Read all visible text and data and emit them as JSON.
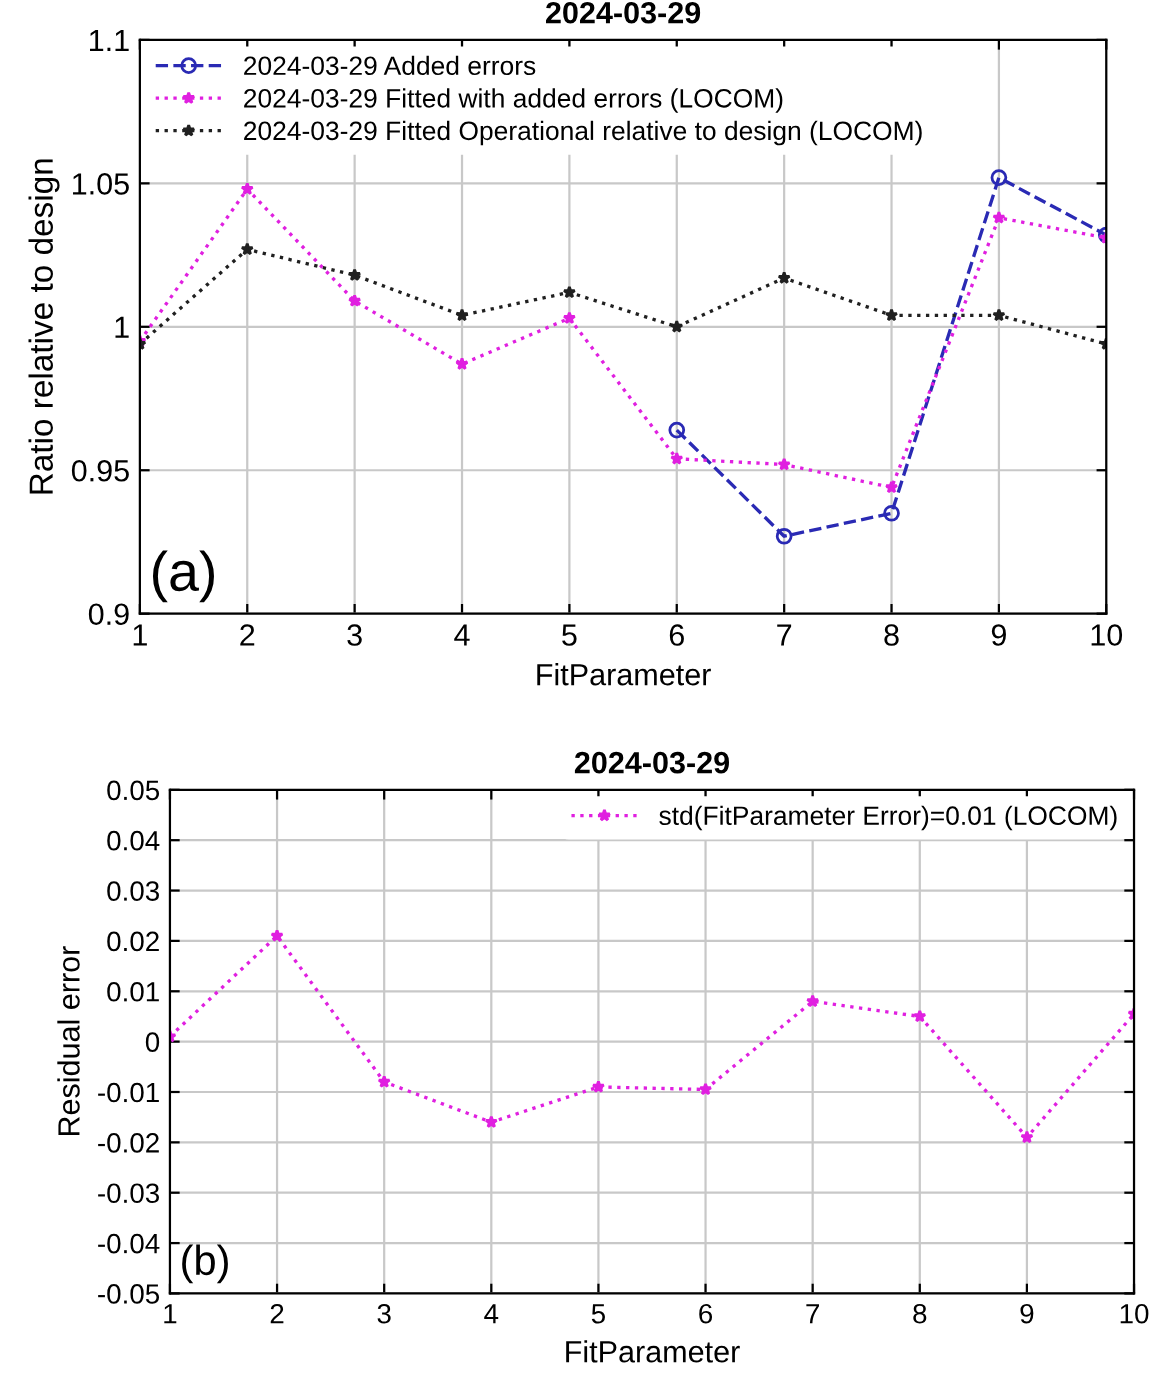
{
  "chart_data": [
    {
      "type": "line",
      "title": "2024-03-29",
      "xlabel": "FitParameter",
      "ylabel": "Ratio relative to design",
      "x": [
        1,
        2,
        3,
        4,
        5,
        6,
        7,
        8,
        9,
        10
      ],
      "xlim": [
        1,
        10
      ],
      "xticks": [
        1,
        2,
        3,
        4,
        5,
        6,
        7,
        8,
        9,
        10
      ],
      "ylim": [
        0.9,
        1.1
      ],
      "yticks": [
        0.9,
        0.95,
        1,
        1.05,
        1.1
      ],
      "grid": true,
      "legend": "top left",
      "annotations": [
        "(a)"
      ],
      "series": [
        {
          "name": "2024-03-29 Added errors",
          "color": "#2a2ab4",
          "marker": "circle",
          "line_style": "dashed",
          "values": [
            null,
            null,
            null,
            null,
            null,
            0.964,
            0.927,
            0.935,
            1.052,
            1.032
          ]
        },
        {
          "name": "2024-03-29 Fitted with added errors (LOCOM)",
          "color": "#e020e0",
          "marker": "star",
          "line_style": "dotted",
          "values": [
            0.995,
            1.048,
            1.009,
            0.987,
            1.003,
            0.954,
            0.952,
            0.944,
            1.038,
            1.031
          ]
        },
        {
          "name": "2024-03-29 Fitted Operational relative to design (LOCOM)",
          "color": "#202020",
          "marker": "star",
          "line_style": "dotted",
          "values": [
            0.994,
            1.027,
            1.018,
            1.004,
            1.012,
            1.0,
            1.017,
            1.004,
            1.004,
            0.994
          ]
        }
      ]
    },
    {
      "type": "line",
      "title": "2024-03-29",
      "xlabel": "FitParameter",
      "ylabel": "Residual error",
      "x": [
        1,
        2,
        3,
        4,
        5,
        6,
        7,
        8,
        9,
        10
      ],
      "xlim": [
        1,
        10
      ],
      "xticks": [
        1,
        2,
        3,
        4,
        5,
        6,
        7,
        8,
        9,
        10
      ],
      "ylim": [
        -0.05,
        0.05
      ],
      "yticks": [
        -0.05,
        -0.04,
        -0.03,
        -0.02,
        -0.01,
        0,
        0.01,
        0.02,
        0.03,
        0.04,
        0.05
      ],
      "grid": true,
      "legend": "top right",
      "annotations": [
        "(b)"
      ],
      "series": [
        {
          "name": "std(FitParameter Error)=0.01 (LOCOM)",
          "color": "#e020e0",
          "marker": "star",
          "line_style": "dotted",
          "values": [
            0.001,
            0.021,
            -0.008,
            -0.016,
            -0.009,
            -0.0095,
            0.008,
            0.005,
            -0.019,
            0.0055
          ]
        }
      ]
    }
  ]
}
